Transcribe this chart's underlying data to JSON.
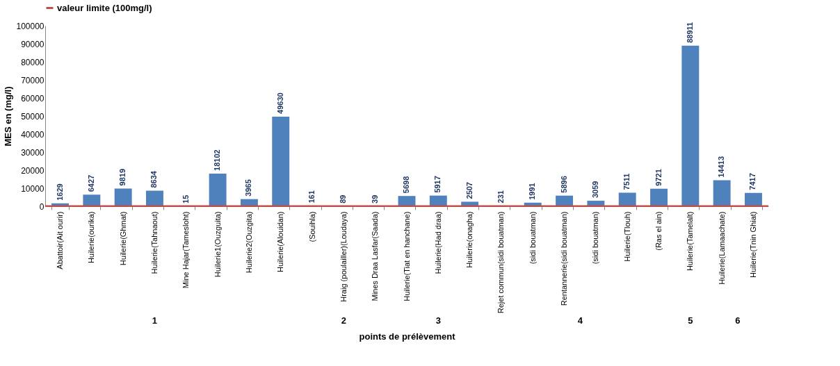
{
  "chart_data": {
    "type": "bar",
    "ylabel": "MES en (mg/l)",
    "xlabel": "points de prélèvement",
    "categories": [
      "Abattoir(Ait ourir)",
      "Huilerie(ourika)",
      "Huilerie(Ghmat)",
      "Huilerie(Tahnaout)",
      "Mine Hajar(Tamesloht)",
      "Huilerie1(Ouzguita)",
      "Huilerie2(Ouzgita)",
      "Huilerie(Alouidan)",
      "(Souihla)",
      "Hraig (poulailler)(Loudaya)",
      "Mines Draa Lasfar(Saada)",
      "Huilerie(Tiat en hanchane)",
      "Huilerie(Had draa)",
      "Huilerie(onagha)",
      "Rejet commun(sidi bouatman)",
      "(sidi bouatman)",
      "Rentannerie(sidi bouatman)",
      "(sidi bouatman)",
      "Huilerie(Tlouh)",
      "(Ras el ain)",
      "Huilerie(Tamelalt)",
      "Huilerie(Lamaachate)",
      "Huilerie(Tnin Ghiat)"
    ],
    "values": [
      1629,
      6427,
      9819,
      8634,
      15,
      18102,
      3965,
      49630,
      161,
      89,
      39,
      5698,
      5917,
      2507,
      231,
      1991,
      5896,
      3059,
      7511,
      9721,
      88911,
      14413,
      7417
    ],
    "color": "#4f81bd",
    "data_labels": true,
    "ylim": [
      0,
      100000
    ],
    "yticks": [
      0,
      10000,
      20000,
      30000,
      40000,
      50000,
      60000,
      70000,
      80000,
      90000,
      100000
    ],
    "grid": false,
    "legend": "top",
    "ref_lines": [
      {
        "axis": "y",
        "value": 100,
        "label": "valeur limite (100mg/l)",
        "color": "#c0504d"
      }
    ],
    "annotations": [
      "1",
      "2",
      "3",
      "4",
      "5",
      "6"
    ]
  }
}
